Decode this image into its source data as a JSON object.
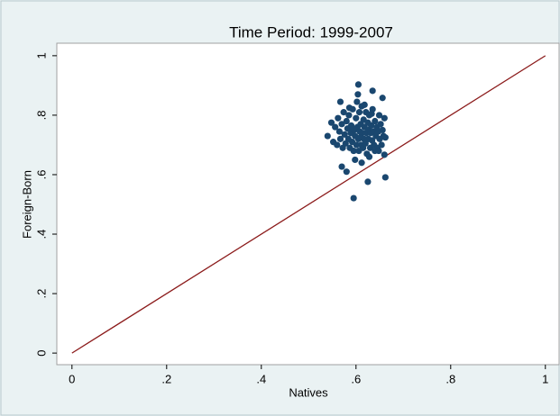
{
  "chart_data": {
    "type": "scatter",
    "title": "Time Period: 1999-2007",
    "x_label": "Natives",
    "y_label": "Foreign-Born",
    "xlim": [
      -0.032,
      1.029
    ],
    "ylim": [
      -0.039,
      1.042
    ],
    "xticks": [
      0,
      {
        "value": 0.2,
        "label": ".2"
      },
      {
        "value": 0.4,
        "label": ".4"
      },
      {
        "value": 0.6,
        "label": ".6"
      },
      {
        "value": 0.8,
        "label": ".8"
      },
      1
    ],
    "yticks": [
      0,
      {
        "value": 0.2,
        "label": ".2"
      },
      {
        "value": 0.4,
        "label": ".4"
      },
      {
        "value": 0.6,
        "label": ".6"
      },
      {
        "value": 0.8,
        "label": ".8"
      },
      1
    ],
    "grid": false,
    "color": "#1a476f",
    "x": [
      0.54,
      0.548,
      0.552,
      0.556,
      0.56,
      0.562,
      0.565,
      0.567,
      0.57,
      0.572,
      0.574,
      0.576,
      0.578,
      0.58,
      0.582,
      0.584,
      0.585,
      0.587,
      0.589,
      0.59,
      0.592,
      0.593,
      0.595,
      0.596,
      0.598,
      0.6,
      0.601,
      0.602,
      0.603,
      0.605,
      0.606,
      0.607,
      0.608,
      0.61,
      0.611,
      0.612,
      0.613,
      0.615,
      0.616,
      0.617,
      0.618,
      0.62,
      0.621,
      0.622,
      0.623,
      0.625,
      0.626,
      0.627,
      0.628,
      0.63,
      0.631,
      0.632,
      0.634,
      0.635,
      0.637,
      0.638,
      0.64,
      0.642,
      0.644,
      0.645,
      0.647,
      0.649,
      0.65,
      0.652,
      0.654,
      0.656,
      0.658,
      0.66,
      0.662,
      0.595,
      0.625,
      0.662,
      0.605,
      0.635,
      0.57,
      0.58,
      0.567,
      0.656,
      0.66,
      0.598,
      0.612,
      0.628,
      0.64,
      0.604,
      0.618,
      0.586,
      0.633,
      0.648,
      0.609,
      0.594
    ],
    "y": [
      0.73,
      0.775,
      0.71,
      0.76,
      0.7,
      0.79,
      0.745,
      0.72,
      0.77,
      0.69,
      0.81,
      0.735,
      0.705,
      0.78,
      0.755,
      0.72,
      0.8,
      0.69,
      0.74,
      0.765,
      0.71,
      0.82,
      0.68,
      0.75,
      0.73,
      0.79,
      0.7,
      0.845,
      0.76,
      0.72,
      0.68,
      0.81,
      0.745,
      0.77,
      0.7,
      0.83,
      0.74,
      0.69,
      0.785,
      0.72,
      0.76,
      0.705,
      0.81,
      0.74,
      0.67,
      0.775,
      0.72,
      0.75,
      0.8,
      0.69,
      0.74,
      0.765,
      0.715,
      0.82,
      0.745,
      0.7,
      0.78,
      0.73,
      0.76,
      0.69,
      0.745,
      0.8,
      0.72,
      0.77,
      0.7,
      0.75,
      0.73,
      0.79,
      0.725,
      0.521,
      0.576,
      0.591,
      0.903,
      0.882,
      0.627,
      0.61,
      0.845,
      0.858,
      0.667,
      0.65,
      0.64,
      0.66,
      0.68,
      0.87,
      0.835,
      0.825,
      0.805,
      0.68,
      0.725,
      0.755
    ],
    "line": {
      "x": [
        0,
        1
      ],
      "y": [
        0,
        1
      ],
      "color": "#8b1a1a"
    }
  }
}
